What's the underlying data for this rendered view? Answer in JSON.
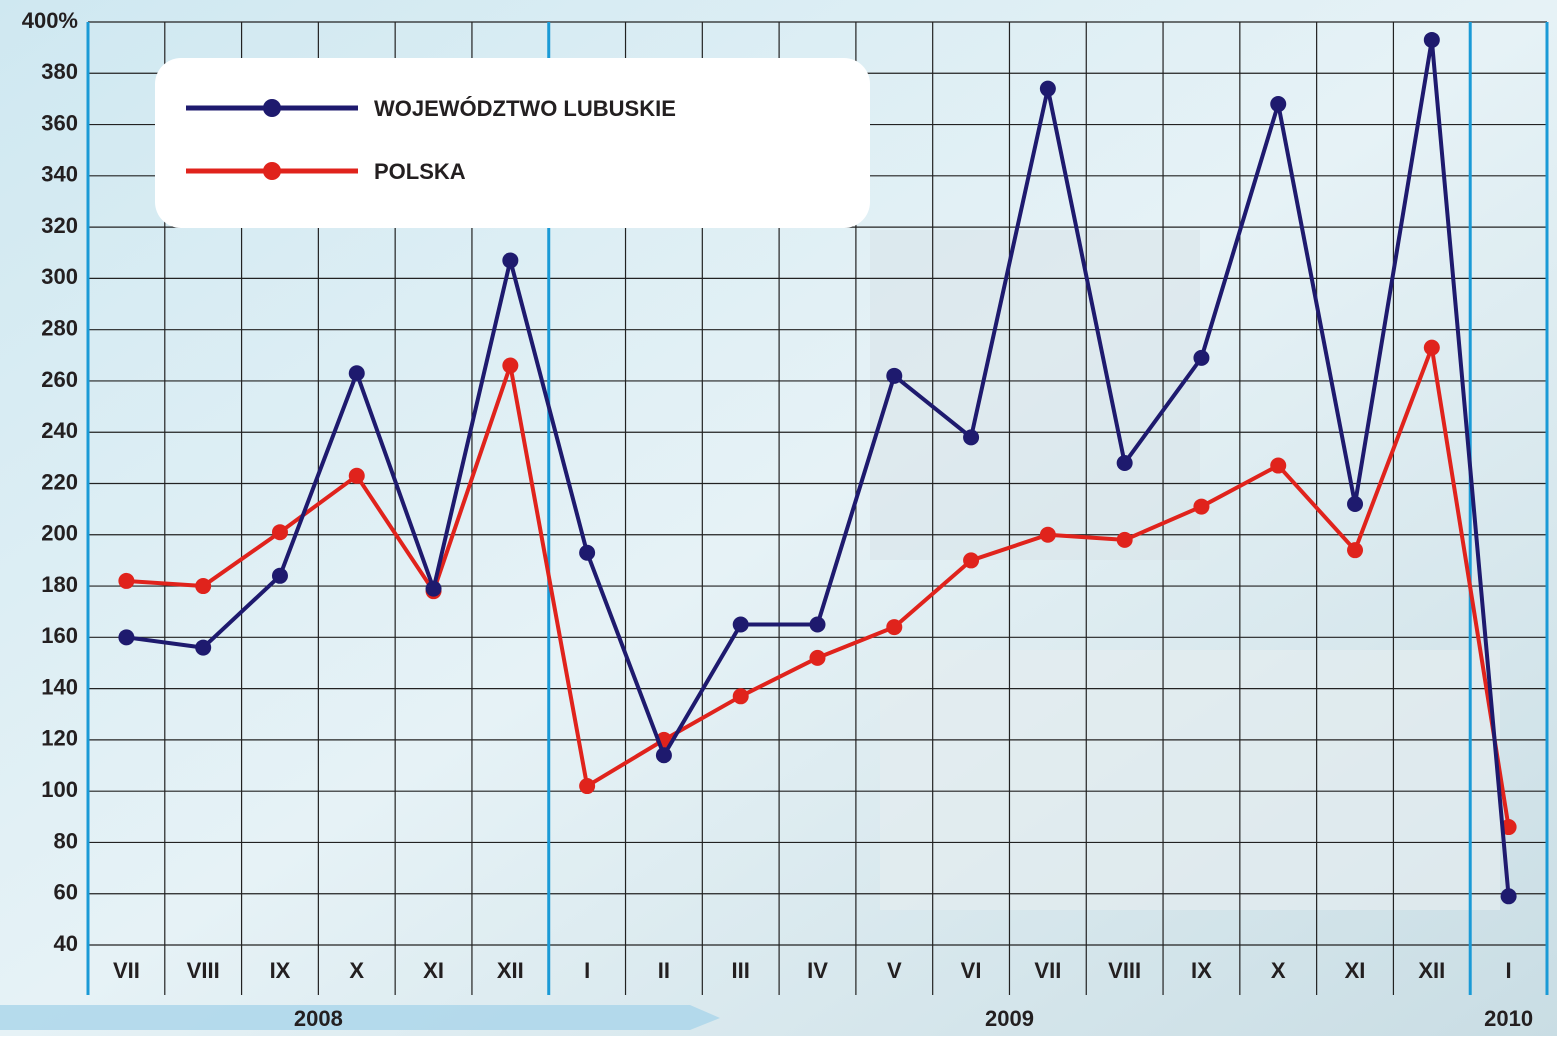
{
  "chart_data": {
    "type": "line",
    "categories": [
      "VII",
      "VIII",
      "IX",
      "X",
      "XI",
      "XII",
      "I",
      "II",
      "III",
      "IV",
      "V",
      "VI",
      "VII",
      "VIII",
      "IX",
      "X",
      "XI",
      "XII",
      "I"
    ],
    "category_groups": [
      {
        "label": "2008",
        "size": 6
      },
      {
        "label": "2009",
        "size": 12
      },
      {
        "label": "2010",
        "size": 1
      }
    ],
    "series": [
      {
        "name": "WOJEWÓDZTWO LUBUSKIE",
        "color": "#1e1a6e",
        "values": [
          160,
          156,
          184,
          263,
          179,
          307,
          193,
          114,
          165,
          165,
          262,
          238,
          374,
          228,
          269,
          368,
          212,
          393,
          59
        ]
      },
      {
        "name": "POLSKA",
        "color": "#e0231c",
        "values": [
          182,
          180,
          201,
          223,
          178,
          266,
          102,
          120,
          137,
          152,
          164,
          190,
          200,
          198,
          211,
          227,
          194,
          273,
          86
        ]
      }
    ],
    "ylim": [
      40,
      400
    ],
    "yticks": [
      40,
      60,
      80,
      100,
      120,
      140,
      160,
      180,
      200,
      220,
      240,
      260,
      280,
      300,
      320,
      340,
      360,
      380,
      {
        "value": 400,
        "label": "400%"
      }
    ],
    "grid": true
  }
}
